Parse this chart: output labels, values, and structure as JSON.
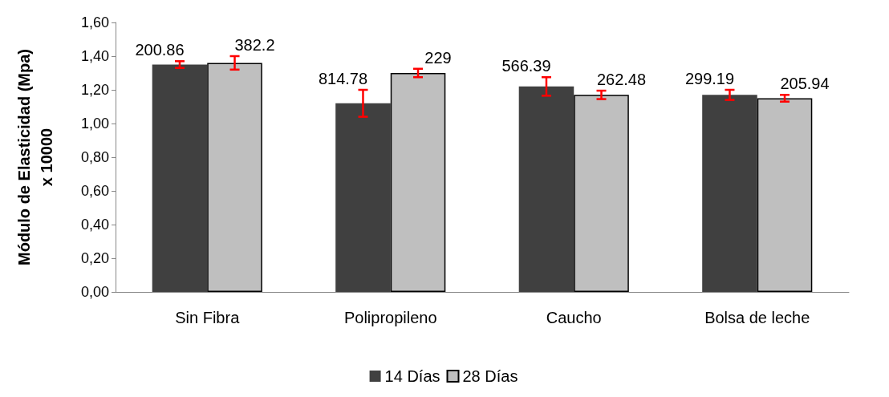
{
  "chart_data": {
    "type": "bar",
    "ylabel": "Módulo de Elasticidad (Mpa)\nx 10000",
    "categories": [
      "Sin Fibra",
      "Polipropileno",
      "Caucho",
      "Bolsa de leche"
    ],
    "series": [
      {
        "name": "14 Días",
        "color": "#404040",
        "values": [
          1.35,
          1.12,
          1.22,
          1.17
        ],
        "errors": [
          0.02,
          0.08,
          0.055,
          0.03
        ]
      },
      {
        "name": "28 Días",
        "color": "#bfbfbf",
        "values": [
          1.36,
          1.3,
          1.17,
          1.15
        ],
        "errors": [
          0.04,
          0.025,
          0.025,
          0.02
        ]
      }
    ],
    "annotations": [
      {
        "text": "200.86",
        "x": "Sin Fibra",
        "y": 1.35
      },
      {
        "text": "382.2",
        "x": "Sin Fibra",
        "y": 1.36
      },
      {
        "text": "814.78",
        "x": "Polipropileno",
        "y": 1.12
      },
      {
        "text": "229",
        "x": "Polipropileno",
        "y": 1.3
      },
      {
        "text": "566.39",
        "x": "Caucho",
        "y": 1.22
      },
      {
        "text": "262.48",
        "x": "Caucho",
        "y": 1.17
      },
      {
        "text": "299.19",
        "x": "Bolsa de leche",
        "y": 1.17
      },
      {
        "text": "205.94",
        "x": "Bolsa de leche",
        "y": 1.15
      }
    ],
    "ylim": [
      0,
      1.6
    ],
    "yticks": [
      {
        "value": 0,
        "label": "0,00"
      },
      {
        "value": 0.2,
        "label": "0,20"
      },
      {
        "value": 0.4,
        "label": "0,40"
      },
      {
        "value": 0.6,
        "label": "0,60"
      },
      {
        "value": 0.8,
        "label": "0,80"
      },
      {
        "value": 1,
        "label": "1,00"
      },
      {
        "value": 1.2,
        "label": "1,20"
      },
      {
        "value": 1.4,
        "label": "1,40"
      },
      {
        "value": 1.6,
        "label": "1,60"
      }
    ],
    "grid": false,
    "legend": "bottom"
  }
}
